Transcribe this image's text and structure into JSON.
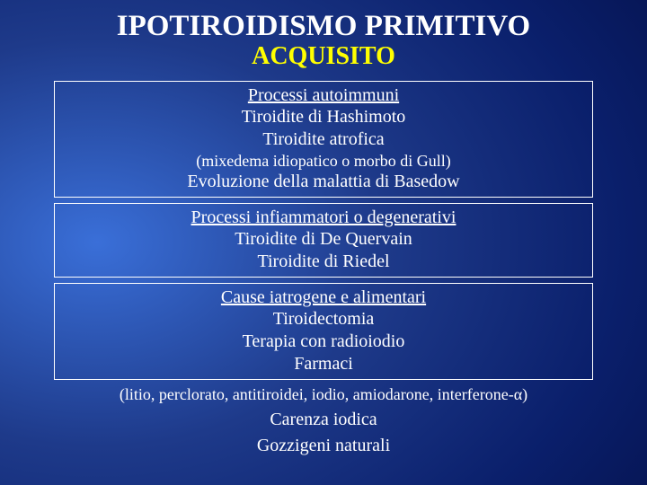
{
  "title_main": "IPOTIROIDISMO PRIMITIVO",
  "title_main_fontsize": "33px",
  "title_sub": "ACQUISITO",
  "title_sub_fontsize": "28px",
  "title_sub_color": "#ffff00",
  "background_gradient": {
    "inner": "#3a6fd8",
    "mid": "#1e3a8a",
    "outer": "#020b3d"
  },
  "text_color": "#ffffff",
  "box_border_color": "#ffffff",
  "font_family": "Georgia, 'Times New Roman', serif",
  "body_fontsize": "20px",
  "small_fontsize": "18px",
  "box1": {
    "heading": "Processi autoimmuni",
    "line1": "Tiroidite di Hashimoto",
    "line2": "Tiroidite atrofica",
    "paren": "(mixedema idiopatico o morbo di Gull)",
    "line3": "Evoluzione della malattia di Basedow"
  },
  "box2": {
    "heading": "Processi infiammatori o degenerativi",
    "line1": "Tiroidite di De Quervain",
    "line2": "Tiroidite di Riedel"
  },
  "box3": {
    "heading": "Cause iatrogene e alimentari",
    "line1": "Tiroidectomia",
    "line2": "Terapia con radioiodio",
    "line3": "Farmaci"
  },
  "outside1": "(litio, perclorato, antitiroidei, iodio, amiodarone, interferone-α)",
  "outside2": "Carenza iodica",
  "outside3": "Gozzigeni naturali"
}
